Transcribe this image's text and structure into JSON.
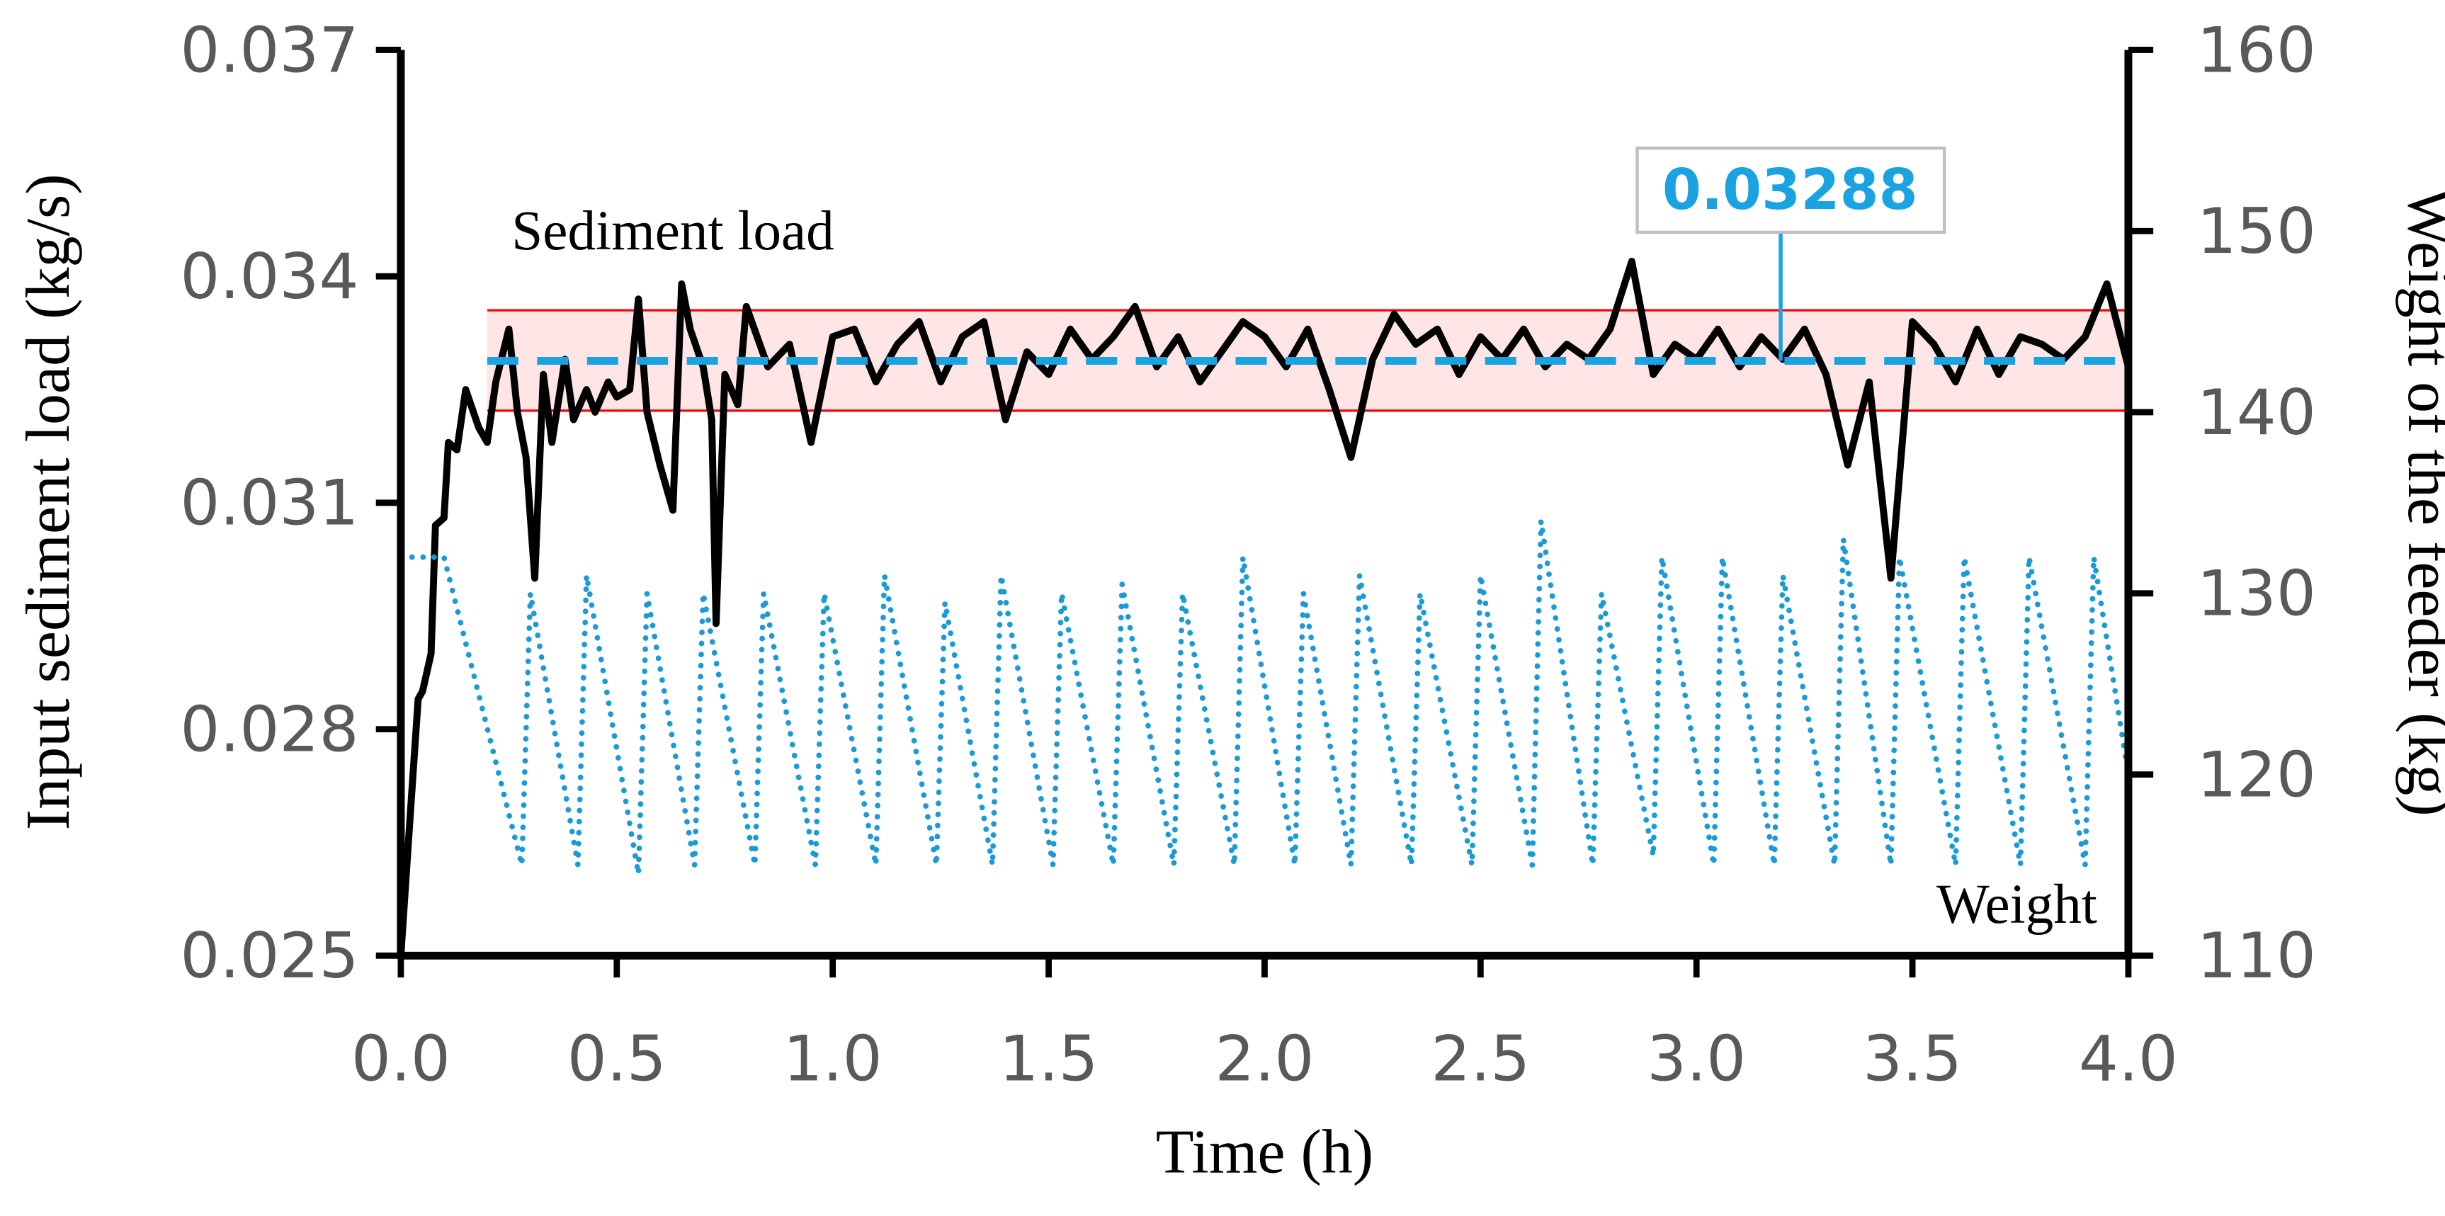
{
  "chart_data": {
    "type": "line",
    "xlabel": "Time (h)",
    "ylabel": "Input sediment load (kg/s)",
    "y2label": "Weight of the feeder (kg)",
    "xlim": [
      0,
      4.0
    ],
    "xticks": [
      {
        "value": 0,
        "label": "0.0"
      },
      0.5,
      {
        "value": 1,
        "label": "1.0"
      },
      1.5,
      {
        "value": 2,
        "label": "2.0"
      },
      2.5,
      {
        "value": 3,
        "label": "3.0"
      },
      3.5,
      {
        "value": 4,
        "label": "4.0"
      }
    ],
    "ylim": [
      0.025,
      0.037
    ],
    "yticks": [
      0.025,
      0.028,
      0.031,
      0.034,
      0.037
    ],
    "y2lim": [
      110,
      160
    ],
    "y2ticks": [
      110,
      120,
      130,
      140,
      150,
      160
    ],
    "series": [
      {
        "name": "Sediment load",
        "color": "#000000",
        "axis": "y",
        "x": [
          0,
          0.02,
          0.04,
          0.05,
          0.07,
          0.08,
          0.1,
          0.11,
          0.13,
          0.15,
          0.18,
          0.2,
          0.22,
          0.25,
          0.27,
          0.29,
          0.31,
          0.33,
          0.35,
          0.38,
          0.4,
          0.43,
          0.45,
          0.48,
          0.5,
          0.53,
          0.55,
          0.57,
          0.6,
          0.63,
          0.65,
          0.67,
          0.7,
          0.72,
          0.73,
          0.75,
          0.78,
          0.8,
          0.85,
          0.9,
          0.95,
          1.0,
          1.05,
          1.1,
          1.15,
          1.2,
          1.25,
          1.3,
          1.35,
          1.4,
          1.45,
          1.5,
          1.55,
          1.6,
          1.65,
          1.7,
          1.75,
          1.8,
          1.85,
          1.9,
          1.95,
          2.0,
          2.05,
          2.1,
          2.15,
          2.2,
          2.25,
          2.3,
          2.35,
          2.4,
          2.45,
          2.5,
          2.55,
          2.6,
          2.65,
          2.7,
          2.75,
          2.8,
          2.85,
          2.9,
          2.95,
          3.0,
          3.05,
          3.1,
          3.15,
          3.2,
          3.25,
          3.3,
          3.35,
          3.4,
          3.45,
          3.5,
          3.55,
          3.6,
          3.65,
          3.7,
          3.75,
          3.8,
          3.85,
          3.9,
          3.95,
          4.0
        ],
        "values": [
          0.025,
          0.0267,
          0.0284,
          0.0285,
          0.029,
          0.0307,
          0.0308,
          0.0318,
          0.0317,
          0.0325,
          0.032,
          0.0318,
          0.0326,
          0.0333,
          0.0322,
          0.0316,
          0.03,
          0.0327,
          0.0318,
          0.0329,
          0.0321,
          0.0325,
          0.0322,
          0.0326,
          0.0324,
          0.0325,
          0.0337,
          0.0322,
          0.0315,
          0.0309,
          0.0339,
          0.0333,
          0.0328,
          0.0321,
          0.0294,
          0.0327,
          0.0323,
          0.0336,
          0.0328,
          0.0331,
          0.0318,
          0.0332,
          0.0333,
          0.0326,
          0.0331,
          0.0334,
          0.0326,
          0.0332,
          0.0334,
          0.0321,
          0.033,
          0.0327,
          0.0333,
          0.0329,
          0.0332,
          0.0336,
          0.0328,
          0.0332,
          0.0326,
          0.033,
          0.0334,
          0.0332,
          0.0328,
          0.0333,
          0.0325,
          0.0316,
          0.0329,
          0.0335,
          0.0331,
          0.0333,
          0.0327,
          0.0332,
          0.0329,
          0.0333,
          0.0328,
          0.0331,
          0.0329,
          0.0333,
          0.0342,
          0.0327,
          0.0331,
          0.0329,
          0.0333,
          0.0328,
          0.0332,
          0.0329,
          0.0333,
          0.0327,
          0.0315,
          0.0326,
          0.03,
          0.0334,
          0.0331,
          0.0326,
          0.0333,
          0.0327,
          0.0332,
          0.0331,
          0.0329,
          0.0332,
          0.0339,
          0.0328
        ]
      },
      {
        "name": "Weight",
        "color": "#1a9ad6",
        "axis": "y2",
        "x": [
          0,
          0.1,
          0.28,
          0.3,
          0.41,
          0.43,
          0.55,
          0.57,
          0.68,
          0.7,
          0.82,
          0.84,
          0.96,
          0.98,
          1.1,
          1.12,
          1.24,
          1.26,
          1.37,
          1.39,
          1.51,
          1.53,
          1.65,
          1.67,
          1.79,
          1.81,
          1.93,
          1.95,
          2.07,
          2.09,
          2.2,
          2.22,
          2.34,
          2.36,
          2.48,
          2.5,
          2.62,
          2.64,
          2.76,
          2.78,
          2.9,
          2.92,
          3.04,
          3.06,
          3.18,
          3.2,
          3.32,
          3.34,
          3.45,
          3.47,
          3.6,
          3.62,
          3.75,
          3.77,
          3.9,
          3.92,
          4.0
        ],
        "values": [
          132,
          132,
          115,
          130,
          115,
          131,
          114.5,
          130,
          115,
          130,
          115,
          130,
          115,
          130,
          115,
          131,
          115,
          129.5,
          115,
          131,
          115,
          130,
          115,
          130.5,
          115,
          130,
          115,
          132,
          115,
          130,
          115,
          131,
          115,
          130,
          115,
          131,
          115,
          134,
          115,
          130,
          115.5,
          132,
          115,
          132,
          115,
          131,
          115,
          133,
          115,
          132,
          115,
          132,
          115,
          132,
          115,
          132,
          120
        ]
      }
    ],
    "mean_line": {
      "value": 0.03288,
      "x": [
        0.2,
        4.0
      ],
      "color": "#1aa3e0"
    },
    "band": {
      "range": [
        0.03222,
        0.03355
      ],
      "x": [
        0.2,
        4.0
      ],
      "color": "#ff0000"
    }
  }
}
